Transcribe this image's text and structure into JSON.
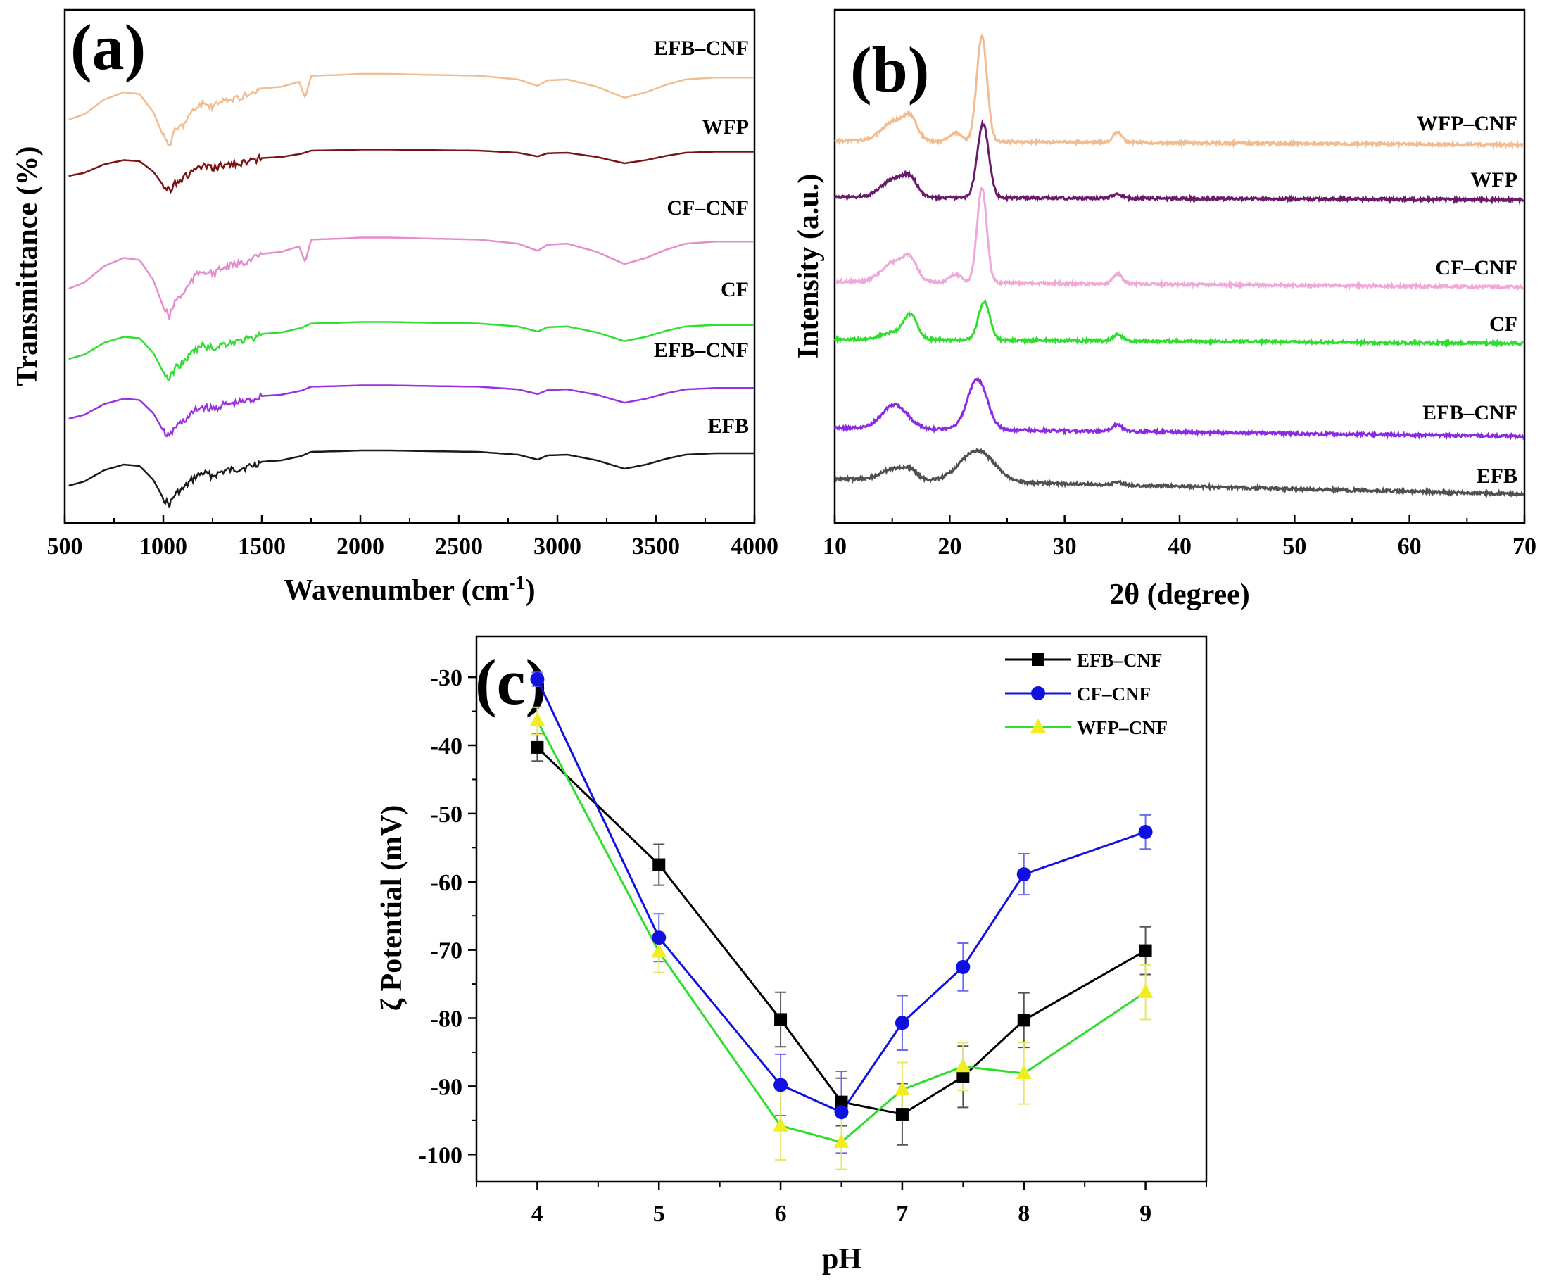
{
  "chart_data": [
    {
      "id": "a",
      "type": "line",
      "panel_label": "(a)",
      "xlabel": "Wavenumber (cm",
      "xlabel_sup": "-1",
      "xlabel_end": ")",
      "ylabel": "Transmittance (%)",
      "xlim": [
        500,
        4000
      ],
      "xticks": [
        "500",
        "1000",
        "1500",
        "2000",
        "2500",
        "3000",
        "3500",
        "4000"
      ],
      "series": [
        {
          "name": "EFB",
          "color": "#1a1a1a"
        },
        {
          "name": "EFB–CNF",
          "color": "#9b30e0"
        },
        {
          "name": "CF",
          "color": "#33dd33"
        },
        {
          "name": "CF–CNF",
          "color": "#e58ccc"
        },
        {
          "name": "WFP",
          "color": "#7a1414"
        },
        {
          "name": "EFB–CNF",
          "color": "#f0bc90"
        }
      ]
    },
    {
      "id": "b",
      "type": "line",
      "panel_label": "(b)",
      "xlabel": "2θ (degree)",
      "ylabel": "Intensity (a.u.)",
      "xlim": [
        10,
        70
      ],
      "xticks": [
        "10",
        "20",
        "30",
        "40",
        "50",
        "60",
        "70"
      ],
      "series": [
        {
          "name": "EFB",
          "color": "#505050"
        },
        {
          "name": "EFB–CNF",
          "color": "#8a2be2"
        },
        {
          "name": "CF",
          "color": "#2fdd2f"
        },
        {
          "name": "CF–CNF",
          "color": "#f0a8d8"
        },
        {
          "name": "WFP",
          "color": "#6a1a6a"
        },
        {
          "name": "WFP–CNF",
          "color": "#f0bc90"
        }
      ]
    },
    {
      "id": "c",
      "type": "line",
      "panel_label": "(c)",
      "xlabel": "pH",
      "ylabel": "ζ Potential (mV)",
      "xlim": [
        3.5,
        9.5
      ],
      "ylim": [
        -104,
        -24
      ],
      "xticks": [
        "4",
        "5",
        "6",
        "7",
        "8",
        "9"
      ],
      "yticks": [
        "-30",
        "-40",
        "-50",
        "-60",
        "-70",
        "-80",
        "-90",
        "-100"
      ],
      "x": [
        4,
        5,
        6,
        6.5,
        7,
        7.5,
        8,
        9
      ],
      "series": [
        {
          "name": "EFB–CNF",
          "color": "#000000",
          "line": "#000000",
          "marker": "square",
          "values": [
            -40.3,
            -57.5,
            -80.2,
            -92.3,
            -94.1,
            -88.6,
            -80.3,
            -70.1
          ],
          "errors": [
            2,
            3,
            4,
            3.5,
            4.5,
            4.5,
            4,
            3.5
          ]
        },
        {
          "name": "CF–CNF",
          "color": "#1010e0",
          "line": "#1010e0",
          "marker": "circle",
          "values": [
            -30.3,
            -68.2,
            -89.8,
            -93.8,
            -80.7,
            -72.5,
            -58.9,
            -52.7
          ],
          "errors": [
            1,
            3.5,
            4.5,
            6,
            4,
            3.5,
            3,
            2.5
          ]
        },
        {
          "name": "WFP–CNF",
          "color": "#eeee20",
          "line": "#2fdd2f",
          "marker": "triangle",
          "values": [
            -36.4,
            -70.3,
            -95.8,
            -98.2,
            -90.5,
            -87.1,
            -88.1,
            -76.2
          ],
          "errors": [
            2,
            3,
            5,
            4,
            4,
            3.5,
            4.5,
            4
          ]
        }
      ]
    }
  ]
}
